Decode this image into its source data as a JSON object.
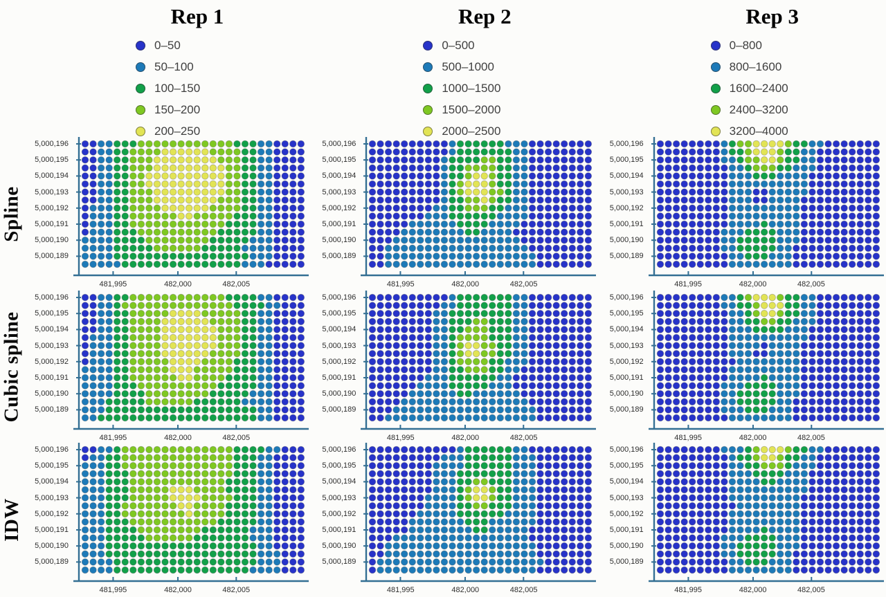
{
  "page": {
    "background": "#fcfcfa"
  },
  "figure": {
    "row_labels": [
      "Spline",
      "Cubic spline",
      "IDW"
    ],
    "columns": [
      {
        "title": "Rep 1",
        "legend": [
          {
            "label": "0–50",
            "color": "#2733c9"
          },
          {
            "label": "50–100",
            "color": "#1d7ab8"
          },
          {
            "label": "100–150",
            "color": "#12a049"
          },
          {
            "label": "150–200",
            "color": "#7fc822"
          },
          {
            "label": "200–250",
            "color": "#e2e455"
          }
        ]
      },
      {
        "title": "Rep 2",
        "legend": [
          {
            "label": "0–500",
            "color": "#2733c9"
          },
          {
            "label": "500–1000",
            "color": "#1d7ab8"
          },
          {
            "label": "1000–1500",
            "color": "#12a049"
          },
          {
            "label": "1500–2000",
            "color": "#7fc822"
          },
          {
            "label": "2000–2500",
            "color": "#e2e455"
          }
        ]
      },
      {
        "title": "Rep 3",
        "legend": [
          {
            "label": "0–800",
            "color": "#2733c9"
          },
          {
            "label": "800–1600",
            "color": "#1d7ab8"
          },
          {
            "label": "1600–2400",
            "color": "#12a049"
          },
          {
            "label": "2400–3200",
            "color": "#7fc822"
          },
          {
            "label": "3200–4000",
            "color": "#e2e455"
          }
        ]
      }
    ],
    "axis_color": "#336f93",
    "dot_outline": "#4a4a4a"
  },
  "chart_data": {
    "type": "heatmap",
    "note": "Dot-density interpolation maps; rows = interpolation method, columns = replicate. Each dot class index 0-4 maps to the legend range of its column.",
    "x_axis_ticks": [
      "481,995",
      "482,000",
      "482,005"
    ],
    "y_axis_ticks": [
      "5,000,196",
      "5,000,195",
      "5,000,194",
      "5,000,193",
      "5,000,192",
      "5,000,191",
      "5,000,190",
      "5,000,189"
    ],
    "class_colors": [
      "#2733c9",
      "#1d7ab8",
      "#12a049",
      "#7fc822",
      "#e2e455"
    ],
    "grid_size": {
      "cols": 28,
      "rows": 16
    },
    "panels": [
      {
        "method": "Spline",
        "rep": "Rep 1",
        "classes": [
          "0–50",
          "50–100",
          "100–150",
          "150–200",
          "200–250"
        ],
        "grid": [
          "0011222333333333333222110000",
          "0011223333444444333322110000",
          "0011223334444444433322110000",
          "0011223334444444443322110000",
          "0011223344444444443322110000",
          "0011223344444444443322110000",
          "0011223334444444443322110000",
          "0011223334444444433322110000",
          "0111223333444444333322110000",
          "0111223333334433333222110000",
          "0111223333333333332222110000",
          "0111222333333333322222110000",
          "1111222233333333222221110000",
          "1111222223333332222211110000",
          "1111222222222222222221110000",
          "1111122222222222222211100000"
        ]
      },
      {
        "method": "Spline",
        "rep": "Rep 2",
        "classes": [
          "0–500",
          "500–1000",
          "1000–1500",
          "1500–2000",
          "2000–2500"
        ],
        "grid": [
          "0000000000122222211100000000",
          "0000000000122222221100000000",
          "0000000001222233221100000000",
          "0000000001223333221100000000",
          "0000000001223443221100000000",
          "0000000001234443221100000000",
          "0000000001234443321100000000",
          "0000000001223343221100000000",
          "0000000011223332211100000000",
          "0000000111222222111100000000",
          "0000011111122221111000000000",
          "0000111111112211110000000000",
          "0001111111111111111000000000",
          "0011111111111111111100000000",
          "0011111111111111111110000000",
          "0011111111111111111110000000"
        ]
      },
      {
        "method": "Spline",
        "rep": "Rep 3",
        "classes": [
          "0–800",
          "800–1600",
          "1600–2400",
          "2400–3200",
          "3200–4000"
        ],
        "grid": [
          "0000000012334444322110000000",
          "0000000012234443221100000000",
          "0000000011233443221100000000",
          "0000000001123332211100000000",
          "0000000001112221111000000000",
          "0000000001111111111000000000",
          "0000000001110011111000000000",
          "0000000001110011110000000000",
          "0000000001111111110000000000",
          "0000000001111111110000000000",
          "0000000001111211110000000000",
          "0000000011122221110000000000",
          "0000000011222221110000000000",
          "0000000011222221100000000000",
          "0000000001122211100000000000",
          "0000000001111111100000000000"
        ]
      },
      {
        "method": "Cubic spline",
        "rep": "Rep 1",
        "classes": [
          "0–50",
          "50–100",
          "100–150",
          "150–200",
          "200–250"
        ],
        "grid": [
          "0011223333333333332222110000",
          "0011233333333333333222211000",
          "0011223333344443333322110000",
          "0011223333444444333322110000",
          "0011223333444444433322110000",
          "0111223333444444433322110000",
          "0111223333444444433322110000",
          "0111223333444444333322110000",
          "0111223333344443333222110000",
          "1111223333344433333222110000",
          "1111223333334433332222110000",
          "1111222333333333322222110000",
          "1111222233333333222221110000",
          "1112222233333322222211110000",
          "1112222222222222222222110000",
          "1122222222222222222222110000"
        ]
      },
      {
        "method": "Cubic spline",
        "rep": "Rep 2",
        "classes": [
          "0–500",
          "500–1000",
          "1000–1500",
          "1500–2000",
          "2000–2500"
        ],
        "grid": [
          "0000000000122222221100000000",
          "0000000001122222221100000000",
          "0000000011222222221100000000",
          "0000000011222332221100000000",
          "0000000011223332221100000000",
          "0000000011233332221100000000",
          "0000000011234433221100000000",
          "0000000011234433221100000000",
          "0000000011233332211100000000",
          "0000000011223332211000000000",
          "0000000111222222110000000000",
          "0000001111222221110000000000",
          "0000011111122111111000000000",
          "0000111111111111111100000000",
          "0001111111111111111110000000",
          "0011111111111111111110000000"
        ]
      },
      {
        "method": "Cubic spline",
        "rep": "Rep 3",
        "classes": [
          "0–800",
          "800–1600",
          "1600–2400",
          "2400–3200",
          "3200–4000"
        ],
        "grid": [
          "0000000011234443221100000000",
          "0000000011223444221100000000",
          "0000000001123443221100000000",
          "0000000001122332211100000000",
          "0000000001112222111000000000",
          "0000000001111111111000000000",
          "0000000001111011110000000000",
          "0000000001110011110000000000",
          "0000000000111111110000000000",
          "0000000001111111110000000000",
          "0000000001111211110000000000",
          "0000000011122221110000000000",
          "0000000011222221110000000000",
          "0000000011222221100000000000",
          "0000000011122211100000000000",
          "0000000001111111100000000000"
        ]
      },
      {
        "method": "IDW",
        "rep": "Rep 1",
        "classes": [
          "0–50",
          "50–100",
          "100–150",
          "150–200",
          "200–250"
        ],
        "grid": [
          "0011233333333333333222211000",
          "0112233333333333333222110000",
          "1112233333333333333222110000",
          "1112223333333333333222110000",
          "1112223333333333332222110000",
          "1112223333344433332222110000",
          "1112223333344443333222110000",
          "1112233333334433332222110000",
          "1112233333333433332222110000",
          "1112223333333333322222110000",
          "1112222333333332222221110000",
          "1112222233333322222221110000",
          "1112222222222222222222110000",
          "1112222222222222222222111000",
          "1111222222222222222222111000",
          "1111222222222222222221111000"
        ]
      },
      {
        "method": "IDW",
        "rep": "Rep 2",
        "classes": [
          "0–500",
          "500–1000",
          "1000–1500",
          "1500–2000",
          "2000–2500"
        ],
        "grid": [
          "0000000000012222221100000000",
          "0000000001112222221110000000",
          "0000000011112222221110000000",
          "0000000011122222221110000000",
          "0000000011122332221110000000",
          "0000000011123443221110000000",
          "0000000111123443221110000000",
          "0000000111122332221110000000",
          "0000001111122222211110000000",
          "0000011111112221111110000000",
          "0000011111111221111100000000",
          "0001111111111111111100000000",
          "0011111111111111111110000000",
          "0011111111111111111110000000",
          "0111111111111111111111000000",
          "0111111111111111111110000000"
        ]
      },
      {
        "method": "IDW",
        "rep": "Rep 3",
        "classes": [
          "0–800",
          "800–1600",
          "1600–2400",
          "2400–3200",
          "3200–4000"
        ],
        "grid": [
          "0000000011123444322110000000",
          "0000000001223443221100000000",
          "0000000001122333211100000000",
          "0000000001112222111000000000",
          "0000000001111221111000000000",
          "0000000001111111111000000000",
          "0000000001111111110000000000",
          "0000000000111111110000000000",
          "0000000001111111110000000000",
          "0000000001111111110000000000",
          "0000000001111211110000000000",
          "0000000011122221110000000000",
          "0000000011222221110000000000",
          "0000000011222221100000000000",
          "0000000001122211100000000000",
          "0000000001111111100000000000"
        ]
      }
    ]
  }
}
